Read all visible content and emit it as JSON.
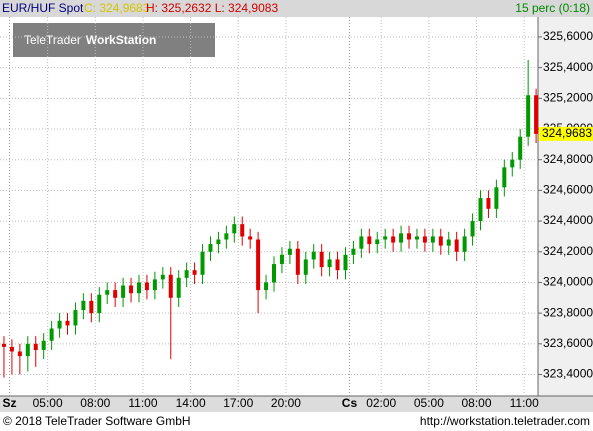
{
  "header": {
    "symbol": "EUR/HUF Spot",
    "close": "C: 324,9683",
    "high_low": "H: 325,2632 L: 324,9083",
    "interval": "15 perc (0:18)"
  },
  "watermark": {
    "brand": "TeleTrader",
    "product": "WorkStation"
  },
  "footer": {
    "copyright": "© 2018 TeleTrader Software GmbH",
    "url": "http://workstation.teletrader.com"
  },
  "chart_data": {
    "type": "candlestick",
    "up_color": "#009900",
    "down_color": "#e00000",
    "grid": true,
    "xlim": [
      2,
      35.87
    ],
    "ylim": [
      323.26,
      325.73
    ],
    "xticks": [
      {
        "value": 2.6,
        "label": "Sz"
      },
      {
        "value": 5,
        "label": "05:00"
      },
      {
        "value": 8,
        "label": "08:00"
      },
      {
        "value": 11,
        "label": "11:00"
      },
      {
        "value": 14,
        "label": "14:00"
      },
      {
        "value": 17,
        "label": "17:00"
      },
      {
        "value": 20,
        "label": "20:00"
      },
      {
        "value": 24,
        "label": "Cs"
      },
      {
        "value": 26,
        "label": "02:00"
      },
      {
        "value": 29,
        "label": "05:00"
      },
      {
        "value": 32,
        "label": "08:00"
      },
      {
        "value": 35,
        "label": "11:00"
      }
    ],
    "yticks": [
      {
        "value": 323.4,
        "label": "323,4000"
      },
      {
        "value": 323.6,
        "label": "323,6000"
      },
      {
        "value": 323.8,
        "label": "323,8000"
      },
      {
        "value": 324.0,
        "label": "324,0000"
      },
      {
        "value": 324.2,
        "label": "324,2000"
      },
      {
        "value": 324.4,
        "label": "324,4000"
      },
      {
        "value": 324.6,
        "label": "324,6000"
      },
      {
        "value": 324.8,
        "label": "324,8000"
      },
      {
        "value": 325.0,
        "label": "325,0000"
      },
      {
        "value": 325.2,
        "label": "325,2000"
      },
      {
        "value": 325.4,
        "label": "325,4000"
      },
      {
        "value": 325.6,
        "label": "325,6000"
      }
    ],
    "last_price": {
      "value": 324.9683,
      "label": "324,9683"
    },
    "x": [
      2.25,
      2.75,
      3.25,
      3.75,
      4.25,
      4.75,
      5.25,
      5.75,
      6.25,
      6.75,
      7.25,
      7.75,
      8.25,
      8.75,
      9.25,
      9.75,
      10.25,
      10.75,
      11.25,
      11.75,
      12.25,
      12.75,
      13.25,
      13.75,
      14.25,
      14.75,
      15.25,
      15.75,
      16.25,
      16.75,
      17.25,
      17.75,
      18.25,
      18.75,
      19.25,
      19.75,
      20.25,
      20.75,
      21.25,
      21.75,
      22.25,
      22.75,
      23.25,
      23.75,
      24.25,
      24.75,
      25.25,
      25.75,
      26.25,
      26.75,
      27.25,
      27.75,
      28.25,
      28.75,
      29.25,
      29.75,
      30.25,
      30.75,
      31.25,
      31.75,
      32.25,
      32.75,
      33.25,
      33.75,
      34.25,
      34.75,
      35.25,
      35.75
    ],
    "open": [
      323.6,
      323.58,
      323.55,
      323.52,
      323.6,
      323.56,
      323.62,
      323.7,
      323.75,
      323.72,
      323.82,
      323.88,
      323.8,
      323.92,
      323.95,
      323.9,
      323.98,
      323.93,
      324.0,
      323.95,
      324.02,
      324.05,
      323.9,
      324.03,
      324.08,
      324.05,
      324.2,
      324.25,
      324.28,
      324.32,
      324.38,
      324.3,
      324.28,
      323.95,
      324.0,
      324.12,
      324.18,
      324.22,
      324.05,
      324.15,
      324.2,
      324.1,
      324.15,
      324.08,
      324.18,
      324.22,
      324.3,
      324.25,
      324.28,
      324.3,
      324.26,
      324.32,
      324.28,
      324.3,
      324.26,
      324.3,
      324.24,
      324.28,
      324.2,
      324.3,
      324.4,
      324.55,
      324.48,
      324.62,
      324.75,
      324.8,
      324.95,
      325.22
    ],
    "high": [
      323.65,
      323.63,
      323.6,
      323.65,
      323.65,
      323.67,
      323.75,
      323.8,
      323.8,
      323.87,
      323.93,
      323.93,
      323.97,
      324.0,
      324.0,
      324.03,
      324.03,
      324.05,
      324.05,
      324.07,
      324.1,
      324.1,
      324.08,
      324.13,
      324.13,
      324.25,
      324.3,
      324.33,
      324.37,
      324.43,
      324.43,
      324.35,
      324.33,
      324.05,
      324.17,
      324.23,
      324.27,
      324.27,
      324.2,
      324.25,
      324.25,
      324.2,
      324.2,
      324.23,
      324.27,
      324.35,
      324.35,
      324.33,
      324.35,
      324.35,
      324.37,
      324.37,
      324.35,
      324.35,
      324.35,
      324.35,
      324.33,
      324.33,
      324.35,
      324.45,
      324.6,
      324.6,
      324.67,
      324.8,
      324.85,
      325.0,
      325.45,
      325.2632
    ],
    "low": [
      323.38,
      323.4,
      323.4,
      323.42,
      323.45,
      323.5,
      323.56,
      323.64,
      323.66,
      323.66,
      323.76,
      323.74,
      323.74,
      323.86,
      323.84,
      323.84,
      323.87,
      323.87,
      323.89,
      323.89,
      323.96,
      323.5,
      323.84,
      323.97,
      323.99,
      323.99,
      324.14,
      324.19,
      324.22,
      324.26,
      324.24,
      324.22,
      323.8,
      323.89,
      323.94,
      324.06,
      324.12,
      323.99,
      323.99,
      324.09,
      324.04,
      324.04,
      324.02,
      324.02,
      324.12,
      324.16,
      324.19,
      324.19,
      324.22,
      324.2,
      324.2,
      324.22,
      324.22,
      324.2,
      324.2,
      324.18,
      324.18,
      324.14,
      324.14,
      324.24,
      324.34,
      324.42,
      324.42,
      324.56,
      324.69,
      324.74,
      324.89,
      324.9083
    ],
    "close": [
      323.58,
      323.55,
      323.52,
      323.6,
      323.56,
      323.62,
      323.7,
      323.75,
      323.72,
      323.82,
      323.88,
      323.8,
      323.92,
      323.95,
      323.9,
      323.98,
      323.93,
      324.0,
      323.95,
      324.02,
      324.05,
      323.9,
      324.03,
      324.08,
      324.05,
      324.2,
      324.25,
      324.28,
      324.32,
      324.38,
      324.3,
      324.28,
      323.95,
      324.0,
      324.12,
      324.18,
      324.22,
      324.05,
      324.15,
      324.2,
      324.1,
      324.15,
      324.08,
      324.18,
      324.22,
      324.3,
      324.25,
      324.28,
      324.3,
      324.26,
      324.32,
      324.28,
      324.3,
      324.26,
      324.3,
      324.24,
      324.28,
      324.2,
      324.3,
      324.4,
      324.55,
      324.48,
      324.62,
      324.75,
      324.8,
      324.95,
      325.22,
      324.9683
    ]
  }
}
